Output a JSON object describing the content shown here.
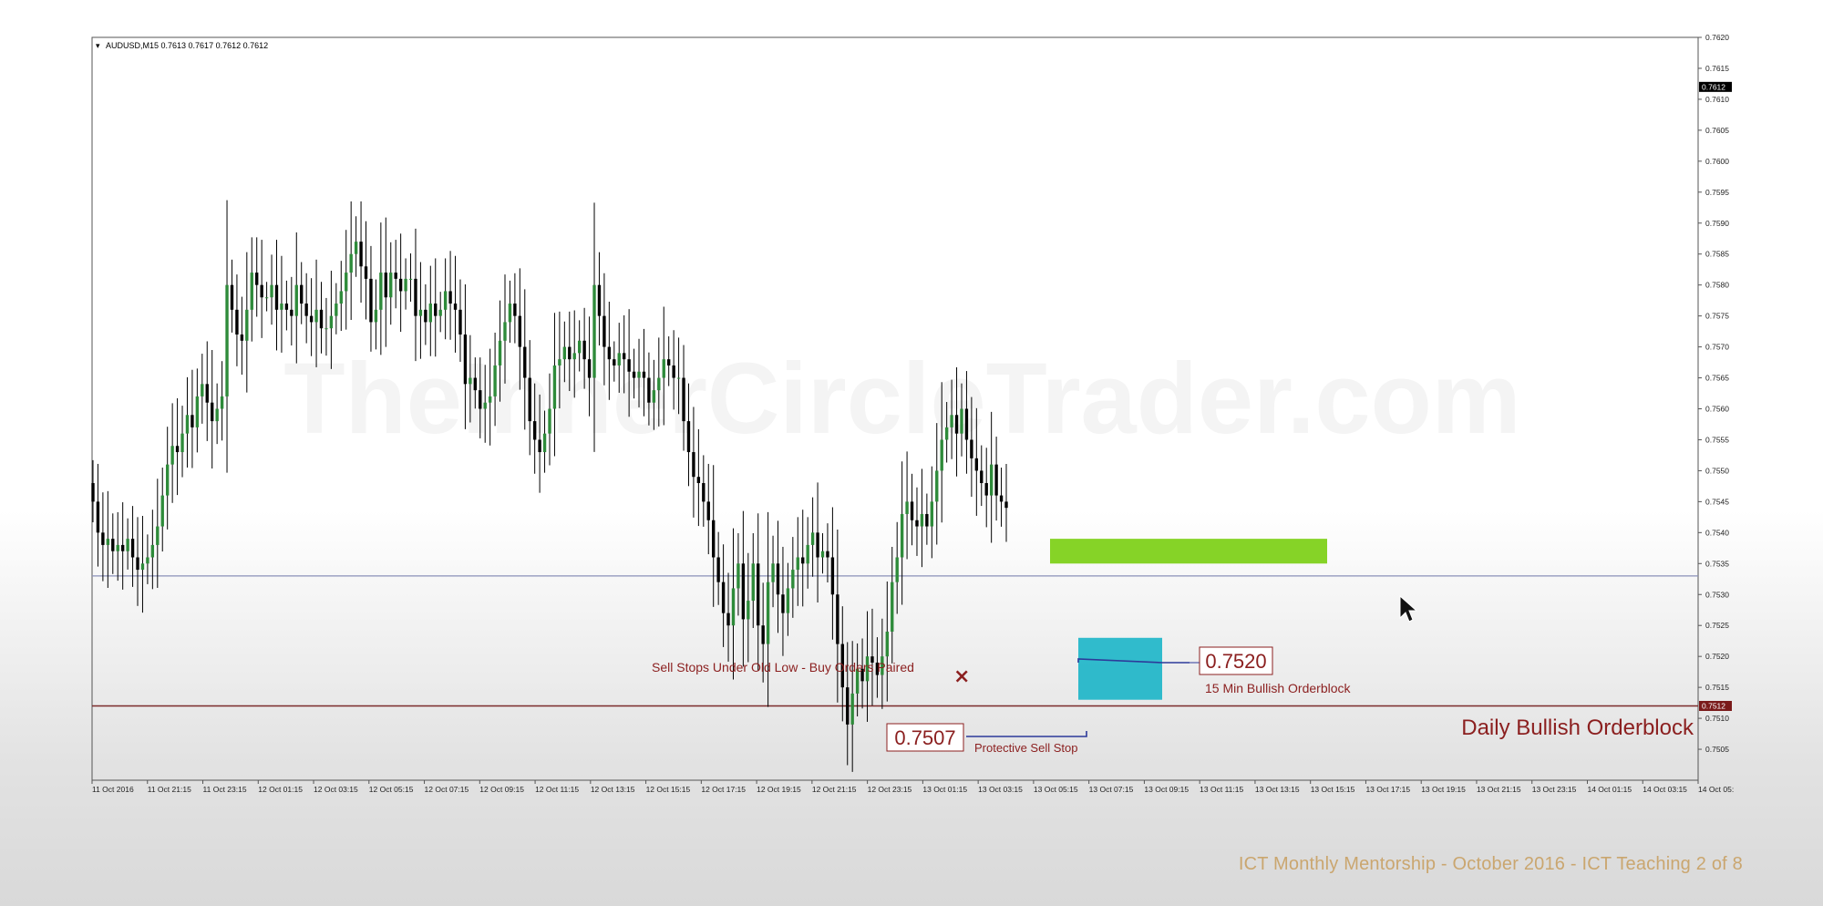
{
  "window": {
    "header": "AUDUSD,M15  0.7613 0.7617 0.7612 0.7612"
  },
  "watermark": "TheInnerCircleTrader.com",
  "footer": "ICT Monthly Mentorship - October 2016 - ICT Teaching 2 of 8",
  "colors": {
    "bull": "#2e8b3a",
    "bear": "#000000",
    "green_zone": "#7fd11b",
    "cyan_zone": "#25b7c9",
    "annotation_red": "#8b1f1f",
    "support_line": "#8a90b8",
    "daily_line": "#7a2a2a"
  },
  "chart_data": {
    "type": "candlestick",
    "symbol": "AUDUSD",
    "timeframe": "M15",
    "header_ohlc": {
      "open": 0.7613,
      "high": 0.7617,
      "low": 0.7612,
      "close": 0.7612
    },
    "current_price": "0.7612",
    "daily_level_label": "0.7512",
    "ylim": [
      0.75,
      0.762
    ],
    "y_ticks": [
      "0.7620",
      "0.7615",
      "0.7610",
      "0.7605",
      "0.7600",
      "0.7595",
      "0.7590",
      "0.7585",
      "0.7580",
      "0.7575",
      "0.7570",
      "0.7565",
      "0.7560",
      "0.7555",
      "0.7550",
      "0.7545",
      "0.7540",
      "0.7535",
      "0.7530",
      "0.7525",
      "0.7520",
      "0.7515",
      "0.7510",
      "0.7505"
    ],
    "x_ticks": [
      "11 Oct 2016",
      "11 Oct 21:15",
      "11 Oct 23:15",
      "12 Oct 01:15",
      "12 Oct 03:15",
      "12 Oct 05:15",
      "12 Oct 07:15",
      "12 Oct 09:15",
      "12 Oct 11:15",
      "12 Oct 13:15",
      "12 Oct 15:15",
      "12 Oct 17:15",
      "12 Oct 19:15",
      "12 Oct 21:15",
      "12 Oct 23:15",
      "13 Oct 01:15",
      "13 Oct 03:15",
      "13 Oct 05:15",
      "13 Oct 07:15",
      "13 Oct 09:15",
      "13 Oct 11:15",
      "13 Oct 13:15",
      "13 Oct 15:15",
      "13 Oct 17:15",
      "13 Oct 19:15",
      "13 Oct 21:15",
      "13 Oct 23:15",
      "14 Oct 01:15",
      "14 Oct 03:15",
      "14 Oct 05:"
    ],
    "closes": [
      0.7545,
      0.754,
      0.7538,
      0.7539,
      0.7537,
      0.7538,
      0.7537,
      0.7539,
      0.7536,
      0.7534,
      0.7535,
      0.7536,
      0.7538,
      0.7541,
      0.7546,
      0.7551,
      0.7554,
      0.7553,
      0.7556,
      0.7559,
      0.7557,
      0.7562,
      0.7564,
      0.7561,
      0.7558,
      0.756,
      0.7562,
      0.758,
      0.7576,
      0.7572,
      0.7571,
      0.7576,
      0.7582,
      0.758,
      0.7578,
      0.7578,
      0.758,
      0.7576,
      0.7577,
      0.7576,
      0.7575,
      0.758,
      0.7577,
      0.7575,
      0.7574,
      0.7576,
      0.7573,
      0.7573,
      0.7575,
      0.7577,
      0.7579,
      0.7582,
      0.7585,
      0.7587,
      0.7583,
      0.7581,
      0.7574,
      0.7576,
      0.7582,
      0.7578,
      0.7582,
      0.7581,
      0.7579,
      0.7581,
      0.7581,
      0.7575,
      0.7576,
      0.7574,
      0.7577,
      0.7575,
      0.7576,
      0.7579,
      0.7577,
      0.7576,
      0.7572,
      0.7564,
      0.7565,
      0.7563,
      0.756,
      0.7561,
      0.7562,
      0.7567,
      0.7571,
      0.7574,
      0.7577,
      0.7575,
      0.757,
      0.7565,
      0.7558,
      0.7555,
      0.7553,
      0.7556,
      0.756,
      0.7567,
      0.7568,
      0.757,
      0.7568,
      0.7569,
      0.7571,
      0.7568,
      0.7565,
      0.758,
      0.7575,
      0.757,
      0.7568,
      0.7567,
      0.7569,
      0.7568,
      0.7566,
      0.7565,
      0.7566,
      0.7565,
      0.7561,
      0.7563,
      0.7565,
      0.7568,
      0.7567,
      0.7565,
      0.7565,
      0.7558,
      0.7553,
      0.7549,
      0.7548,
      0.7545,
      0.7542,
      0.7536,
      0.7532,
      0.7527,
      0.7525,
      0.7531,
      0.7535,
      0.7526,
      0.7529,
      0.7535,
      0.7525,
      0.7522,
      0.7532,
      0.7535,
      0.753,
      0.7527,
      0.7531,
      0.7534,
      0.7536,
      0.7535,
      0.7538,
      0.754,
      0.7536,
      0.7537,
      0.7536,
      0.753,
      0.7522,
      0.7515,
      0.7509,
      0.7514,
      0.7518,
      0.7516,
      0.752,
      0.7519,
      0.7517,
      0.752,
      0.7524,
      0.7532,
      0.7536,
      0.7543,
      0.7545,
      0.7542,
      0.7541,
      0.7543,
      0.7541,
      0.7545,
      0.755,
      0.7555,
      0.7557,
      0.7559,
      0.7556,
      0.756,
      0.7555,
      0.7552,
      0.755,
      0.7548,
      0.7546,
      0.7551,
      0.7546,
      0.7545,
      0.7544
    ],
    "annotations": [
      {
        "text": "Sell Stops Under Old Low - Buy Orders Paired",
        "marker": "×"
      },
      {
        "text": "0.7520",
        "boxed": true,
        "note": "15 Min Bullish Orderblock"
      },
      {
        "text": "0.7507",
        "boxed": true,
        "note": "Protective Sell Stop"
      },
      {
        "text": "Daily Bullish Orderblock"
      }
    ],
    "zones": [
      {
        "name": "green-zone",
        "from": 0.7535,
        "to": 0.7539
      },
      {
        "name": "15-min-bullish-orderblock",
        "from": 0.7513,
        "to": 0.7523
      }
    ],
    "hlines": [
      0.7533,
      0.7512
    ],
    "grid": false
  }
}
